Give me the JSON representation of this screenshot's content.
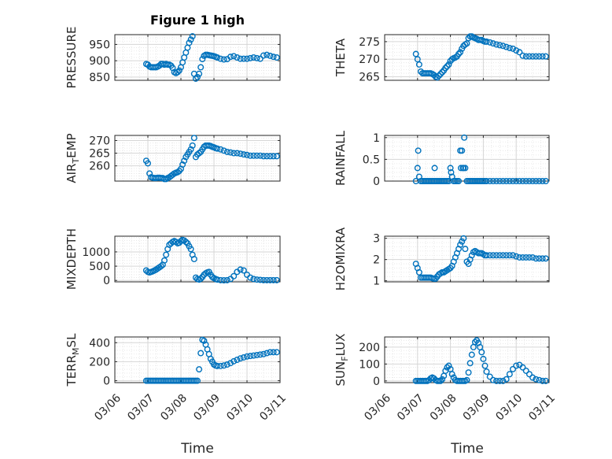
{
  "title": "Figure 1 high",
  "x_axis_label": "Time",
  "x_tick_labels": [
    "03/06",
    "03/07",
    "03/08",
    "03/09",
    "03/10",
    "03/11"
  ],
  "colors": {
    "marker": "#0072bd",
    "axes": "#262626",
    "grid": "#c8c8c8"
  },
  "chart_data": [
    {
      "type": "scatter",
      "ylabel": "PRESSURE",
      "ylabel_sub": "",
      "ylabel_sub_after": "",
      "yticks": [
        850,
        900,
        950
      ],
      "ylim": [
        840,
        980
      ],
      "xlim": [
        0,
        5
      ],
      "x": [
        0.95,
        1.0,
        1.05,
        1.1,
        1.15,
        1.2,
        1.25,
        1.3,
        1.35,
        1.4,
        1.45,
        1.5,
        1.55,
        1.6,
        1.65,
        1.7,
        1.75,
        1.8,
        1.85,
        1.9,
        1.95,
        2.0,
        2.05,
        2.1,
        2.15,
        2.2,
        2.25,
        2.3,
        2.35,
        2.4,
        2.45,
        2.5,
        2.55,
        2.6,
        2.65,
        2.7,
        2.75,
        2.8,
        2.85,
        2.9,
        2.95,
        3.0,
        3.05,
        3.1,
        3.2,
        3.3,
        3.4,
        3.5,
        3.6,
        3.7,
        3.8,
        3.9,
        4.0,
        4.1,
        4.2,
        4.3,
        4.4,
        4.5,
        4.6,
        4.7,
        4.8,
        4.9
      ],
      "y": [
        890,
        888,
        882,
        880,
        880,
        880,
        880,
        882,
        885,
        890,
        890,
        888,
        890,
        888,
        888,
        885,
        878,
        865,
        862,
        865,
        870,
        880,
        895,
        910,
        925,
        940,
        955,
        965,
        975,
        860,
        845,
        850,
        860,
        880,
        905,
        915,
        918,
        918,
        917,
        916,
        915,
        914,
        912,
        910,
        906,
        904,
        905,
        912,
        914,
        910,
        906,
        906,
        906,
        908,
        910,
        908,
        906,
        916,
        918,
        915,
        912,
        910
      ]
    },
    {
      "type": "scatter",
      "ylabel": "THETA",
      "ylabel_sub": "",
      "ylabel_sub_after": "",
      "yticks": [
        265,
        270,
        275
      ],
      "ylim": [
        264,
        277
      ],
      "xlim": [
        0,
        5
      ],
      "x": [
        0.95,
        1.0,
        1.05,
        1.1,
        1.15,
        1.2,
        1.25,
        1.3,
        1.35,
        1.4,
        1.45,
        1.5,
        1.55,
        1.6,
        1.65,
        1.7,
        1.75,
        1.8,
        1.85,
        1.9,
        1.95,
        2.0,
        2.05,
        2.1,
        2.15,
        2.2,
        2.25,
        2.3,
        2.35,
        2.4,
        2.45,
        2.5,
        2.55,
        2.6,
        2.65,
        2.7,
        2.75,
        2.8,
        2.85,
        2.9,
        2.95,
        3.0,
        3.05,
        3.1,
        3.2,
        3.3,
        3.4,
        3.5,
        3.6,
        3.7,
        3.8,
        3.9,
        4.0,
        4.1,
        4.2,
        4.3,
        4.4,
        4.5,
        4.6,
        4.7,
        4.8,
        4.9
      ],
      "y": [
        271.5,
        270,
        268.5,
        266.5,
        266,
        266,
        266,
        266,
        266,
        266,
        265.8,
        265.5,
        265,
        264.8,
        265.3,
        265.8,
        266.3,
        266.8,
        267.5,
        268,
        268.5,
        269.5,
        270,
        270.3,
        270.5,
        270.8,
        271.5,
        272,
        273,
        273.8,
        274.2,
        274.5,
        276,
        276.5,
        276.5,
        276.2,
        276,
        275.8,
        275.5,
        275.5,
        275.5,
        275.2,
        275,
        275,
        274.8,
        274.5,
        274.2,
        274,
        273.8,
        273.5,
        273.2,
        273,
        272.5,
        272,
        271,
        270.8,
        270.8,
        270.8,
        270.8,
        270.8,
        270.8,
        270.8
      ]
    },
    {
      "type": "scatter",
      "ylabel": "AIR",
      "ylabel_sub": "T",
      "ylabel_sub_after": "EMP",
      "yticks": [
        260,
        265,
        270
      ],
      "ylim": [
        254,
        272
      ],
      "xlim": [
        0,
        5
      ],
      "x": [
        0.95,
        1.0,
        1.05,
        1.1,
        1.15,
        1.2,
        1.25,
        1.3,
        1.35,
        1.4,
        1.45,
        1.5,
        1.55,
        1.6,
        1.65,
        1.7,
        1.75,
        1.8,
        1.85,
        1.9,
        1.95,
        2.0,
        2.05,
        2.1,
        2.15,
        2.2,
        2.25,
        2.3,
        2.35,
        2.4,
        2.45,
        2.5,
        2.55,
        2.6,
        2.65,
        2.7,
        2.75,
        2.8,
        2.85,
        2.9,
        2.95,
        3.0,
        3.05,
        3.1,
        3.2,
        3.3,
        3.4,
        3.5,
        3.6,
        3.7,
        3.8,
        3.9,
        4.0,
        4.1,
        4.2,
        4.3,
        4.4,
        4.5,
        4.6,
        4.7,
        4.8,
        4.9
      ],
      "y": [
        262,
        261,
        257,
        255.5,
        255.3,
        255.2,
        255.2,
        255.3,
        255.3,
        255.2,
        255.2,
        254.8,
        254.8,
        255.2,
        255.5,
        256,
        256.5,
        257,
        257.3,
        257.5,
        258,
        258.8,
        260.5,
        262,
        263.5,
        264.5,
        265.5,
        266.5,
        268,
        271,
        263.5,
        264.5,
        265,
        265.5,
        266.5,
        267.5,
        268,
        268,
        268,
        267.8,
        267.5,
        267.3,
        267,
        266.8,
        266.5,
        266,
        265.5,
        265.3,
        265,
        265,
        264.8,
        264.5,
        264.3,
        264,
        264,
        264,
        264,
        263.8,
        263.8,
        263.8,
        263.8,
        263.8
      ]
    },
    {
      "type": "scatter",
      "ylabel": "RAINFALL",
      "ylabel_sub": "",
      "ylabel_sub_after": "",
      "yticks": [
        0,
        0.5,
        1
      ],
      "ylim": [
        0,
        1.05
      ],
      "xlim": [
        0,
        5
      ],
      "x": [
        0.95,
        1.0,
        1.02,
        1.05,
        1.1,
        1.15,
        1.2,
        1.25,
        1.3,
        1.35,
        1.4,
        1.45,
        1.5,
        1.52,
        1.55,
        1.6,
        1.65,
        1.7,
        1.75,
        1.8,
        1.85,
        1.9,
        1.95,
        2.0,
        2.02,
        2.05,
        2.1,
        2.15,
        2.2,
        2.25,
        2.3,
        2.32,
        2.35,
        2.38,
        2.4,
        2.42,
        2.45,
        2.5,
        2.55,
        2.6,
        2.65,
        2.7,
        2.75,
        2.8,
        2.85,
        2.9,
        2.95,
        3.0,
        3.05,
        3.1,
        3.2,
        3.3,
        3.4,
        3.5,
        3.6,
        3.7,
        3.8,
        3.9,
        4.0,
        4.1,
        4.2,
        4.3,
        4.4,
        4.5,
        4.6,
        4.7,
        4.8,
        4.9
      ],
      "y": [
        0,
        0.3,
        0.7,
        0.1,
        0,
        0,
        0,
        0,
        0,
        0,
        0,
        0,
        0,
        0.3,
        0,
        0,
        0,
        0,
        0,
        0,
        0,
        0,
        0,
        0.3,
        0.2,
        0.1,
        0,
        0,
        0,
        0,
        0.7,
        0.3,
        0.7,
        0.3,
        0.3,
        1.0,
        0.3,
        0,
        0,
        0,
        0,
        0,
        0,
        0,
        0,
        0,
        0,
        0,
        0,
        0,
        0,
        0,
        0,
        0,
        0,
        0,
        0,
        0,
        0,
        0,
        0,
        0,
        0,
        0,
        0,
        0,
        0,
        0
      ]
    },
    {
      "type": "scatter",
      "ylabel": "MIXDEPTH",
      "ylabel_sub": "",
      "ylabel_sub_after": "",
      "yticks": [
        0,
        500,
        1000
      ],
      "ylim": [
        -50,
        1550
      ],
      "xlim": [
        0,
        5
      ],
      "x": [
        0.95,
        1.0,
        1.05,
        1.1,
        1.15,
        1.2,
        1.25,
        1.3,
        1.35,
        1.4,
        1.45,
        1.5,
        1.55,
        1.6,
        1.65,
        1.7,
        1.75,
        1.8,
        1.85,
        1.9,
        1.95,
        2.0,
        2.05,
        2.1,
        2.15,
        2.2,
        2.25,
        2.3,
        2.35,
        2.4,
        2.45,
        2.5,
        2.55,
        2.6,
        2.65,
        2.7,
        2.75,
        2.8,
        2.85,
        2.9,
        2.95,
        3.0,
        3.05,
        3.1,
        3.2,
        3.3,
        3.4,
        3.5,
        3.6,
        3.7,
        3.8,
        3.9,
        4.0,
        4.1,
        4.2,
        4.3,
        4.4,
        4.5,
        4.6,
        4.7,
        4.8,
        4.9
      ],
      "y": [
        350,
        300,
        280,
        300,
        320,
        350,
        380,
        420,
        460,
        500,
        550,
        700,
        900,
        1100,
        1250,
        1300,
        1350,
        1380,
        1350,
        1300,
        1320,
        1380,
        1420,
        1400,
        1350,
        1300,
        1200,
        1100,
        900,
        750,
        100,
        50,
        30,
        60,
        120,
        200,
        250,
        280,
        300,
        200,
        120,
        80,
        50,
        30,
        10,
        5,
        10,
        50,
        150,
        300,
        380,
        350,
        200,
        100,
        50,
        30,
        20,
        10,
        10,
        10,
        10,
        10
      ]
    },
    {
      "type": "scatter",
      "ylabel": "H2OMIXRA",
      "ylabel_sub": "",
      "ylabel_sub_after": "",
      "yticks": [
        1,
        2,
        3
      ],
      "ylim": [
        0.95,
        3.1
      ],
      "xlim": [
        0,
        5
      ],
      "x": [
        0.95,
        1.0,
        1.05,
        1.1,
        1.15,
        1.2,
        1.25,
        1.3,
        1.35,
        1.4,
        1.45,
        1.5,
        1.55,
        1.6,
        1.65,
        1.7,
        1.75,
        1.8,
        1.85,
        1.9,
        1.95,
        2.0,
        2.05,
        2.1,
        2.15,
        2.2,
        2.25,
        2.3,
        2.35,
        2.4,
        2.45,
        2.5,
        2.55,
        2.6,
        2.65,
        2.7,
        2.75,
        2.8,
        2.85,
        2.9,
        2.95,
        3.0,
        3.05,
        3.1,
        3.2,
        3.3,
        3.4,
        3.5,
        3.6,
        3.7,
        3.8,
        3.9,
        4.0,
        4.1,
        4.2,
        4.3,
        4.4,
        4.5,
        4.6,
        4.7,
        4.8,
        4.9
      ],
      "y": [
        1.8,
        1.6,
        1.4,
        1.15,
        1.15,
        1.15,
        1.15,
        1.15,
        1.15,
        1.15,
        1.12,
        1.1,
        1.1,
        1.2,
        1.3,
        1.35,
        1.4,
        1.4,
        1.45,
        1.5,
        1.55,
        1.6,
        1.7,
        1.9,
        2.1,
        2.3,
        2.5,
        2.7,
        2.85,
        3.0,
        2.5,
        1.9,
        1.8,
        2.0,
        2.2,
        2.35,
        2.4,
        2.35,
        2.3,
        2.3,
        2.3,
        2.25,
        2.2,
        2.2,
        2.2,
        2.2,
        2.2,
        2.2,
        2.2,
        2.2,
        2.2,
        2.2,
        2.15,
        2.1,
        2.1,
        2.1,
        2.1,
        2.1,
        2.05,
        2.05,
        2.05,
        2.05
      ]
    },
    {
      "type": "scatter",
      "ylabel": "TERR",
      "ylabel_sub": "M",
      "ylabel_sub_after": "SL",
      "yticks": [
        0,
        200,
        400
      ],
      "ylim": [
        -20,
        460
      ],
      "xlim": [
        0,
        5
      ],
      "x": [
        0.95,
        1.0,
        1.05,
        1.1,
        1.15,
        1.2,
        1.25,
        1.3,
        1.35,
        1.4,
        1.45,
        1.5,
        1.55,
        1.6,
        1.65,
        1.7,
        1.75,
        1.8,
        1.85,
        1.9,
        1.95,
        2.0,
        2.05,
        2.1,
        2.15,
        2.2,
        2.25,
        2.3,
        2.35,
        2.4,
        2.45,
        2.5,
        2.55,
        2.6,
        2.65,
        2.7,
        2.75,
        2.8,
        2.85,
        2.9,
        2.95,
        3.0,
        3.05,
        3.1,
        3.2,
        3.3,
        3.4,
        3.5,
        3.6,
        3.7,
        3.8,
        3.9,
        4.0,
        4.1,
        4.2,
        4.3,
        4.4,
        4.5,
        4.6,
        4.7,
        4.8,
        4.9
      ],
      "y": [
        0,
        0,
        0,
        0,
        0,
        0,
        0,
        0,
        0,
        0,
        0,
        0,
        0,
        0,
        0,
        0,
        0,
        0,
        0,
        0,
        0,
        0,
        0,
        0,
        0,
        0,
        0,
        0,
        0,
        0,
        0,
        0,
        120,
        290,
        430,
        420,
        380,
        330,
        280,
        230,
        200,
        170,
        160,
        155,
        155,
        160,
        170,
        185,
        205,
        220,
        235,
        245,
        255,
        260,
        265,
        270,
        275,
        280,
        290,
        300,
        300,
        300
      ]
    },
    {
      "type": "scatter",
      "ylabel": "SUN",
      "ylabel_sub": "F",
      "ylabel_sub_after": "LUX",
      "yticks": [
        0,
        100,
        200
      ],
      "ylim": [
        -10,
        260
      ],
      "xlim": [
        0,
        5
      ],
      "x": [
        0.95,
        1.0,
        1.05,
        1.1,
        1.15,
        1.2,
        1.25,
        1.3,
        1.35,
        1.4,
        1.45,
        1.5,
        1.55,
        1.6,
        1.65,
        1.7,
        1.75,
        1.8,
        1.85,
        1.9,
        1.95,
        2.0,
        2.05,
        2.1,
        2.15,
        2.2,
        2.25,
        2.3,
        2.35,
        2.4,
        2.45,
        2.5,
        2.55,
        2.6,
        2.65,
        2.7,
        2.75,
        2.8,
        2.85,
        2.9,
        2.95,
        3.0,
        3.05,
        3.1,
        3.2,
        3.3,
        3.4,
        3.5,
        3.6,
        3.7,
        3.8,
        3.9,
        4.0,
        4.1,
        4.2,
        4.3,
        4.4,
        4.5,
        4.6,
        4.7,
        4.8,
        4.9
      ],
      "y": [
        0,
        0,
        0,
        0,
        0,
        0,
        0,
        0,
        5,
        15,
        20,
        15,
        5,
        0,
        0,
        0,
        10,
        30,
        60,
        80,
        90,
        70,
        40,
        20,
        5,
        0,
        0,
        0,
        0,
        0,
        0,
        5,
        50,
        105,
        155,
        200,
        230,
        240,
        225,
        200,
        170,
        130,
        90,
        55,
        25,
        5,
        0,
        0,
        0,
        10,
        40,
        70,
        90,
        95,
        80,
        60,
        40,
        20,
        10,
        5,
        0,
        0
      ]
    }
  ]
}
